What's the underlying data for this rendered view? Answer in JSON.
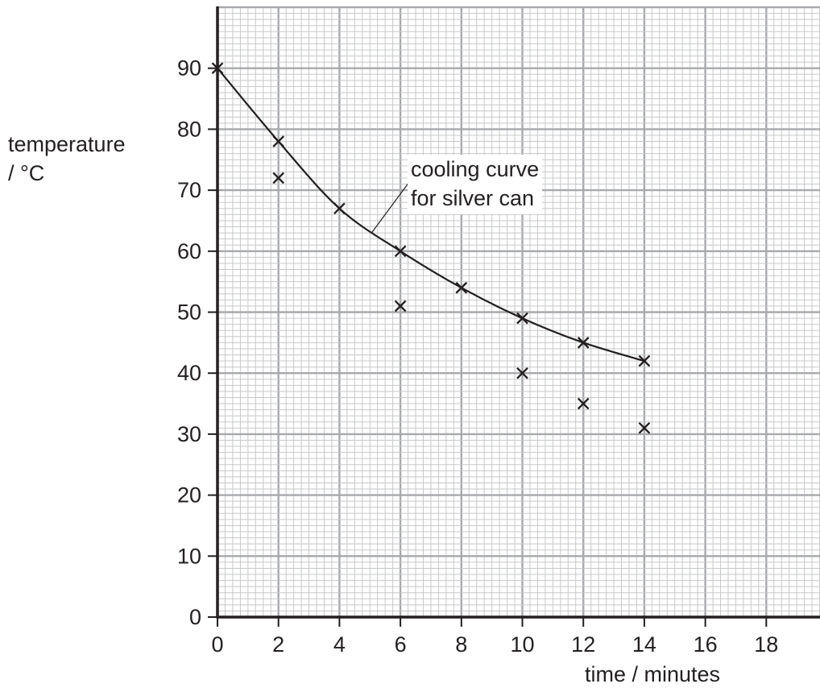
{
  "chart_data": {
    "type": "scatter",
    "title": "",
    "xlabel": "time / minutes",
    "ylabel_lines": [
      "temperature",
      "/ °C"
    ],
    "xlim": [
      0,
      20
    ],
    "ylim": [
      0,
      100
    ],
    "x_ticks": [
      0,
      2,
      4,
      6,
      8,
      10,
      12,
      14,
      16,
      18
    ],
    "y_ticks": [
      0,
      10,
      20,
      30,
      40,
      50,
      60,
      70,
      80,
      90
    ],
    "grid": true,
    "annotation": {
      "lines": [
        "cooling curve",
        "for silver can"
      ],
      "points_to": {
        "x": 5,
        "y": 63
      }
    },
    "series": [
      {
        "marker": "x",
        "curve": true,
        "x": [
          0,
          2,
          4,
          6,
          8,
          10,
          12,
          14
        ],
        "y": [
          90,
          78,
          67,
          60,
          54,
          49,
          45,
          42
        ]
      },
      {
        "marker": "x",
        "curve": false,
        "x": [
          2,
          6,
          10,
          12,
          14
        ],
        "y": [
          72,
          51,
          40,
          35,
          31
        ]
      }
    ]
  }
}
